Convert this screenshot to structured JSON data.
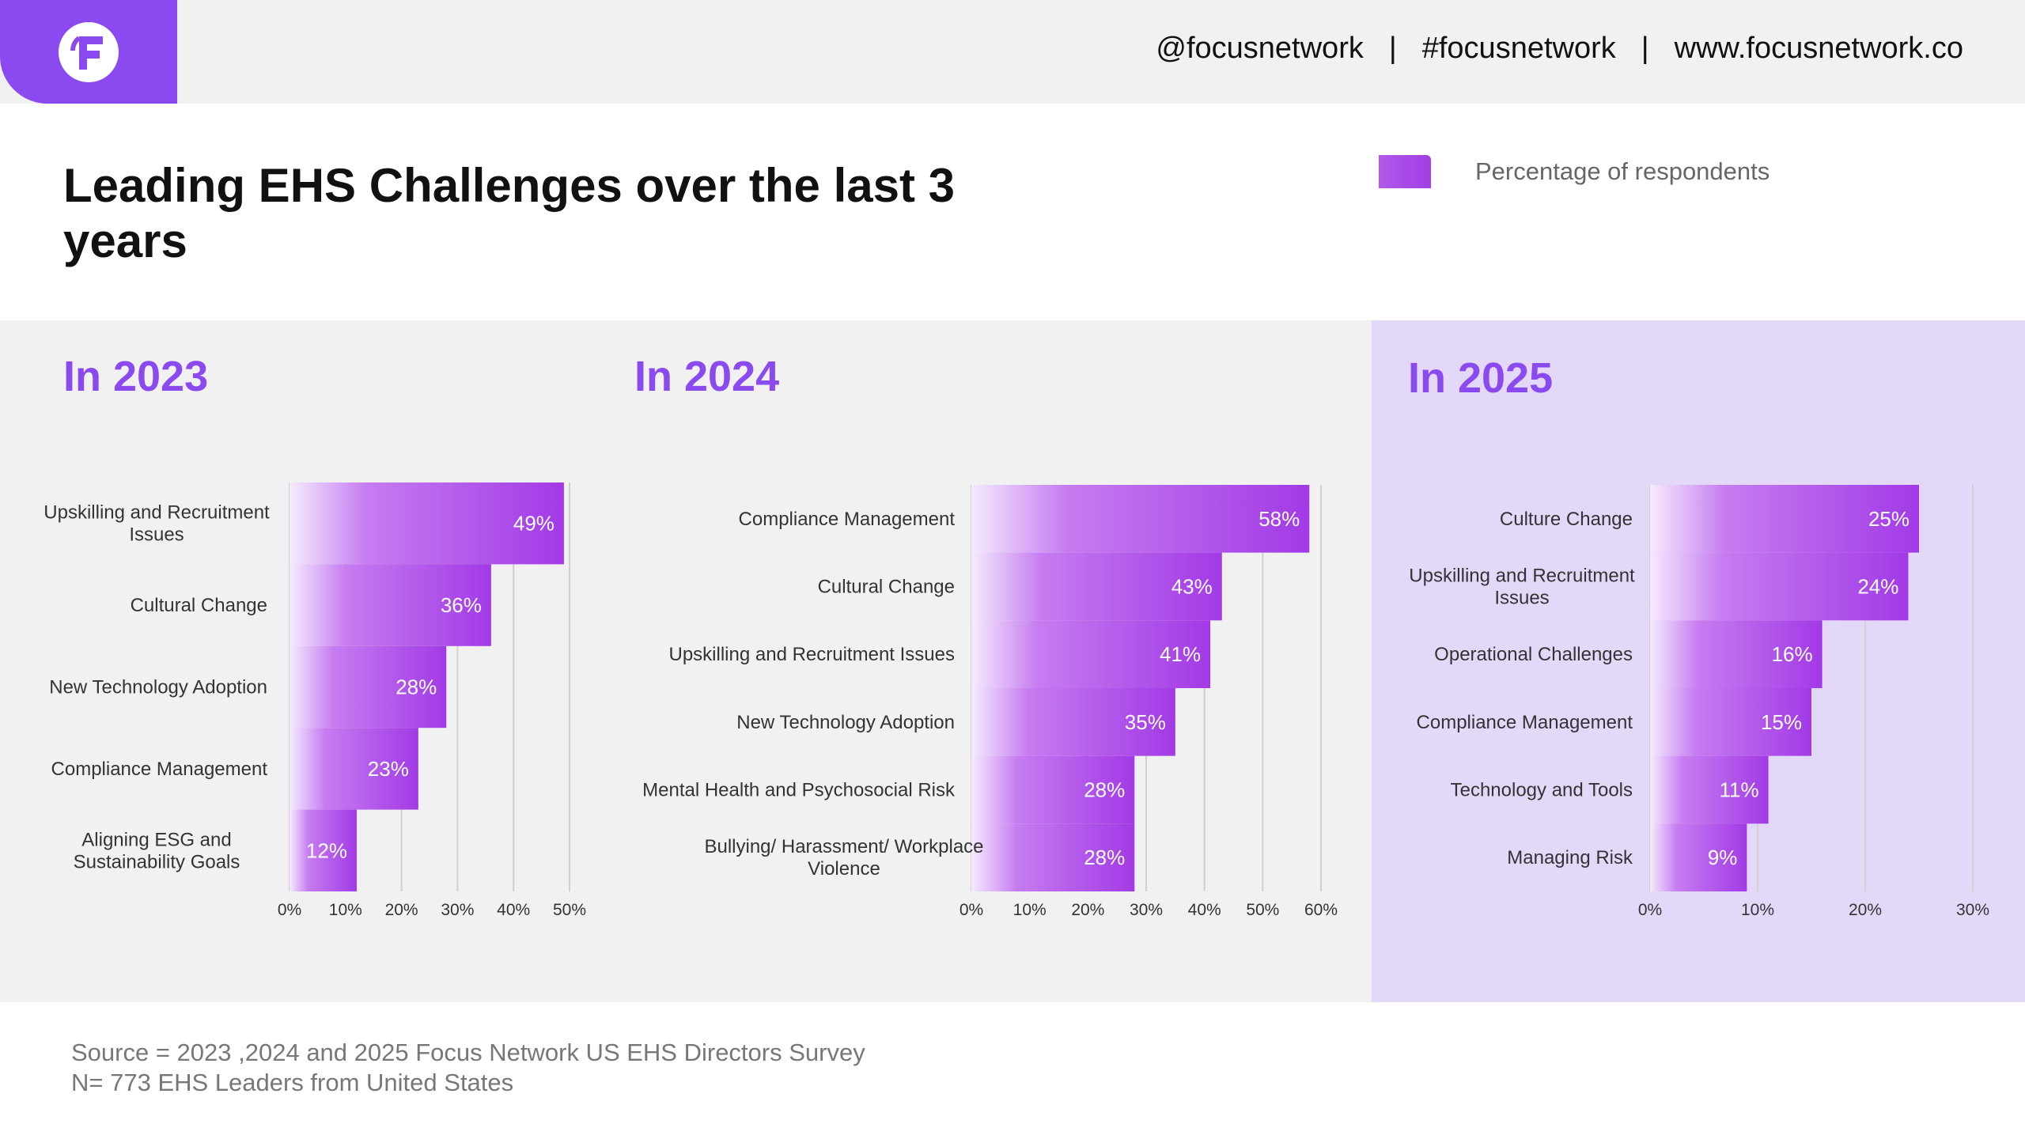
{
  "header": {
    "handle": "@focusnetwork",
    "hashtag": "#focusnetwork",
    "website": "www.focusnetwork.co",
    "separator": "|",
    "logo_icon": "focus-network-logo",
    "brand_color": "#8a4af0"
  },
  "title": "Leading EHS Challenges over the last 3 years",
  "legend": {
    "label": "Percentage of respondents",
    "color": "#a13ee6"
  },
  "chart_data": [
    {
      "type": "bar",
      "orientation": "horizontal",
      "title": "In 2023",
      "categories": [
        "Upskilling and Recruitment Issues",
        "Cultural Change",
        "New Technology Adoption",
        "Compliance Management",
        "Aligning ESG and Sustainability Goals"
      ],
      "values": [
        49,
        36,
        28,
        23,
        12
      ],
      "value_labels": [
        "49%",
        "36%",
        "28%",
        "23%",
        "12%"
      ],
      "xlim": [
        0,
        50
      ],
      "ticks": [
        "0%",
        "10%",
        "20%",
        "30%",
        "40%",
        "50%"
      ],
      "grid": true
    },
    {
      "type": "bar",
      "orientation": "horizontal",
      "title": "In 2024",
      "categories": [
        "Compliance Management",
        "Cultural Change",
        "Upskilling and Recruitment Issues",
        "New Technology Adoption",
        "Mental Health and Psychosocial Risk",
        "Bullying/ Harassment/ Workplace Violence"
      ],
      "values": [
        58,
        43,
        41,
        35,
        28,
        28
      ],
      "value_labels": [
        "58%",
        "43%",
        "41%",
        "35%",
        "28%",
        "28%"
      ],
      "xlim": [
        0,
        60
      ],
      "ticks": [
        "0%",
        "10%",
        "20%",
        "30%",
        "40%",
        "50%",
        "60%"
      ],
      "grid": true
    },
    {
      "type": "bar",
      "orientation": "horizontal",
      "title": "In 2025",
      "categories": [
        "Culture Change",
        "Upskilling and Recruitment Issues",
        "Operational Challenges",
        "Compliance Management",
        "Technology and Tools",
        "Managing Risk"
      ],
      "values": [
        25,
        24,
        16,
        15,
        11,
        9
      ],
      "value_labels": [
        "25%",
        "24%",
        "16%",
        "15%",
        "11%",
        "9%"
      ],
      "xlim": [
        0,
        30
      ],
      "ticks": [
        "0%",
        "10%",
        "20%",
        "30%"
      ],
      "grid": true
    }
  ],
  "source": {
    "line1": "Source = 2023 ,2024 and 2025 Focus Network US EHS Directors Survey",
    "line2": "N= 773 EHS Leaders from United States"
  }
}
